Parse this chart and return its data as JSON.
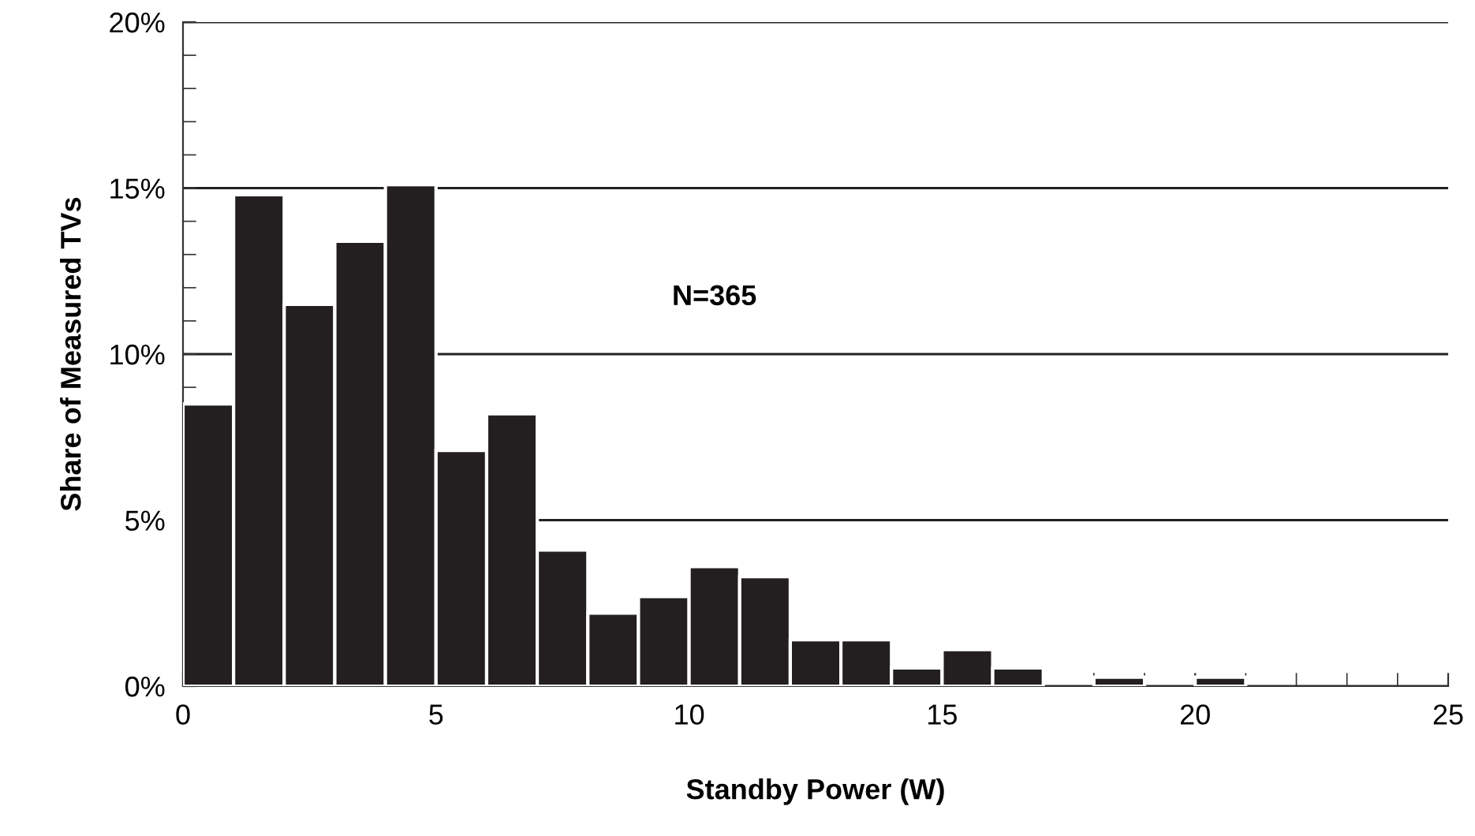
{
  "chart_data": {
    "type": "histogram",
    "xlabel": "Standby Power (W)",
    "ylabel": "Share of Measured TVs",
    "bins": [
      0,
      1,
      2,
      3,
      4,
      5,
      6,
      7,
      8,
      9,
      10,
      11,
      12,
      13,
      14,
      15,
      16,
      17,
      18,
      19,
      20,
      21
    ],
    "values": [
      8.5,
      14.8,
      11.5,
      13.4,
      15.1,
      7.1,
      8.2,
      4.1,
      2.2,
      2.7,
      3.6,
      3.3,
      1.4,
      1.4,
      0.55,
      1.1,
      0.55,
      0,
      0.27,
      0,
      0.27
    ],
    "color": "#231f20",
    "xlim": [
      0,
      25
    ],
    "xticks": [
      0,
      5,
      10,
      15,
      20,
      25
    ],
    "ylim": [
      0,
      20
    ],
    "yticks": [
      {
        "value": 0,
        "label": "0%"
      },
      {
        "value": 5,
        "label": "5%"
      },
      {
        "value": 10,
        "label": "10%"
      },
      {
        "value": 15,
        "label": "15%"
      },
      {
        "value": 20,
        "label": "20%"
      }
    ],
    "grid": "y",
    "annotations": [
      "N=365"
    ]
  }
}
